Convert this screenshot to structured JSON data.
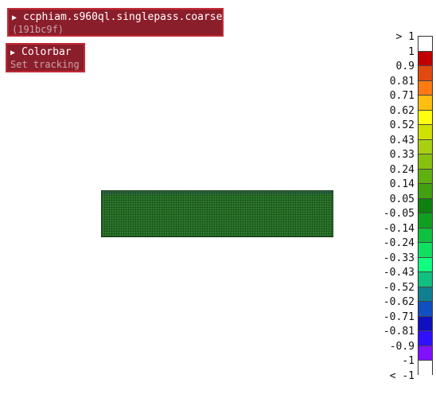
{
  "model_panel": {
    "title": "ccphiam.s960ql.singlepass.coarse",
    "subtitle": "(191bc9f)",
    "expand_icon": "triangle-right-icon"
  },
  "colorbar_panel": {
    "title": "Colorbar",
    "subtitle": "Set tracking",
    "expand_icon": "triangle-right-icon"
  },
  "colorbar": {
    "labels": [
      "> 1",
      "1",
      "0.9",
      "0.81",
      "0.71",
      "0.62",
      "0.52",
      "0.43",
      "0.33",
      "0.24",
      "0.14",
      "0.05",
      "-0.05",
      "-0.14",
      "-0.24",
      "-0.33",
      "-0.43",
      "-0.52",
      "-0.62",
      "-0.71",
      "-0.81",
      "-0.9",
      "-1",
      "< -1"
    ],
    "colors": [
      "#ffffff",
      "#c00000",
      "#e04a10",
      "#ff7a10",
      "#ffbe10",
      "#ffff10",
      "#d0e000",
      "#a8d010",
      "#88c010",
      "#60b010",
      "#40a010",
      "#108010",
      "#10a020",
      "#10c040",
      "#10e060",
      "#10ff80",
      "#10c080",
      "#108090",
      "#1050c0",
      "#1010c0",
      "#3010ff",
      "#8010ff",
      "#ffffff"
    ]
  }
}
